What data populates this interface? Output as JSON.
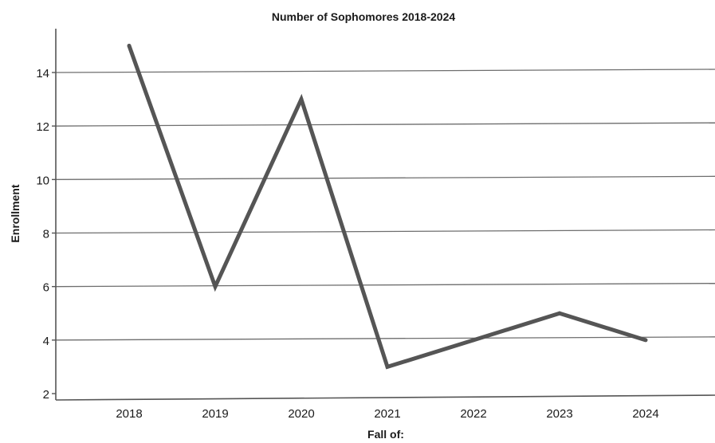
{
  "chart_data": {
    "type": "line",
    "title": "Number of Sophomores 2018-2024",
    "xlabel": "Fall of:",
    "ylabel": "Enrollment",
    "categories": [
      "2018",
      "2019",
      "2020",
      "2021",
      "2022",
      "2023",
      "2024"
    ],
    "series": [
      {
        "values": [
          15,
          6,
          13,
          3,
          4,
          5,
          4
        ]
      }
    ],
    "ylim": [
      2,
      15.5
    ],
    "yticks": [
      2,
      4,
      6,
      8,
      10,
      12,
      14
    ],
    "grid": true,
    "line_color": "#555555"
  }
}
